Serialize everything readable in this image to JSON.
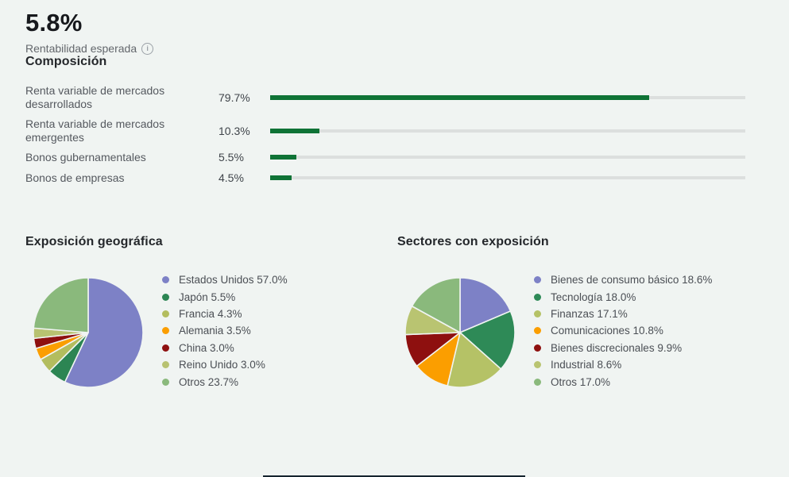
{
  "header": {
    "value": "5.8%",
    "label": "Rentabilidad esperada"
  },
  "composition": {
    "title": "Composición"
  },
  "geo": {
    "title": "Exposición geográfica"
  },
  "sectors": {
    "title": "Sectores con exposición"
  },
  "colors": {
    "background": "#f0f4f2",
    "bar_fill": "#0f7336",
    "bar_track": "#dcdfde"
  },
  "chart_data": [
    {
      "type": "bar",
      "title": "Composición",
      "orientation": "horizontal",
      "categories": [
        "Renta variable de mercados desarrollados",
        "Renta variable de mercados emergentes",
        "Bonos gubernamentales",
        "Bonos de empresas"
      ],
      "values": [
        79.7,
        10.3,
        5.5,
        4.5
      ],
      "value_format": "percent",
      "xlim": [
        0,
        100
      ],
      "bar_color": "#0f7336",
      "track_color": "#dcdfde",
      "grid": false
    },
    {
      "type": "pie",
      "title": "Exposición geográfica",
      "labels": [
        "Estados Unidos",
        "Japón",
        "Francia",
        "Alemania",
        "China",
        "Reino Unido",
        "Otros"
      ],
      "values": [
        57.0,
        5.5,
        4.3,
        3.5,
        3.0,
        3.0,
        23.7
      ],
      "colors": [
        "#7d81c6",
        "#2c8553",
        "#b3bd5e",
        "#fb9e00",
        "#8e100f",
        "#b8c271",
        "#8ab97c"
      ],
      "legend_position": "right",
      "start_angle_deg": -90,
      "direction": "clockwise"
    },
    {
      "type": "pie",
      "title": "Sectores con exposición",
      "labels": [
        "Bienes de consumo básico",
        "Tecnología",
        "Finanzas",
        "Comunicaciones",
        "Bienes discrecionales",
        "Industrial",
        "Otros"
      ],
      "values": [
        18.6,
        18.0,
        17.1,
        10.8,
        9.9,
        8.6,
        17.0
      ],
      "colors": [
        "#7d81c6",
        "#2e8a57",
        "#b5c266",
        "#fb9e00",
        "#8e100f",
        "#b9c471",
        "#8ab97c"
      ],
      "legend_position": "right",
      "start_angle_deg": -90,
      "direction": "clockwise"
    }
  ]
}
